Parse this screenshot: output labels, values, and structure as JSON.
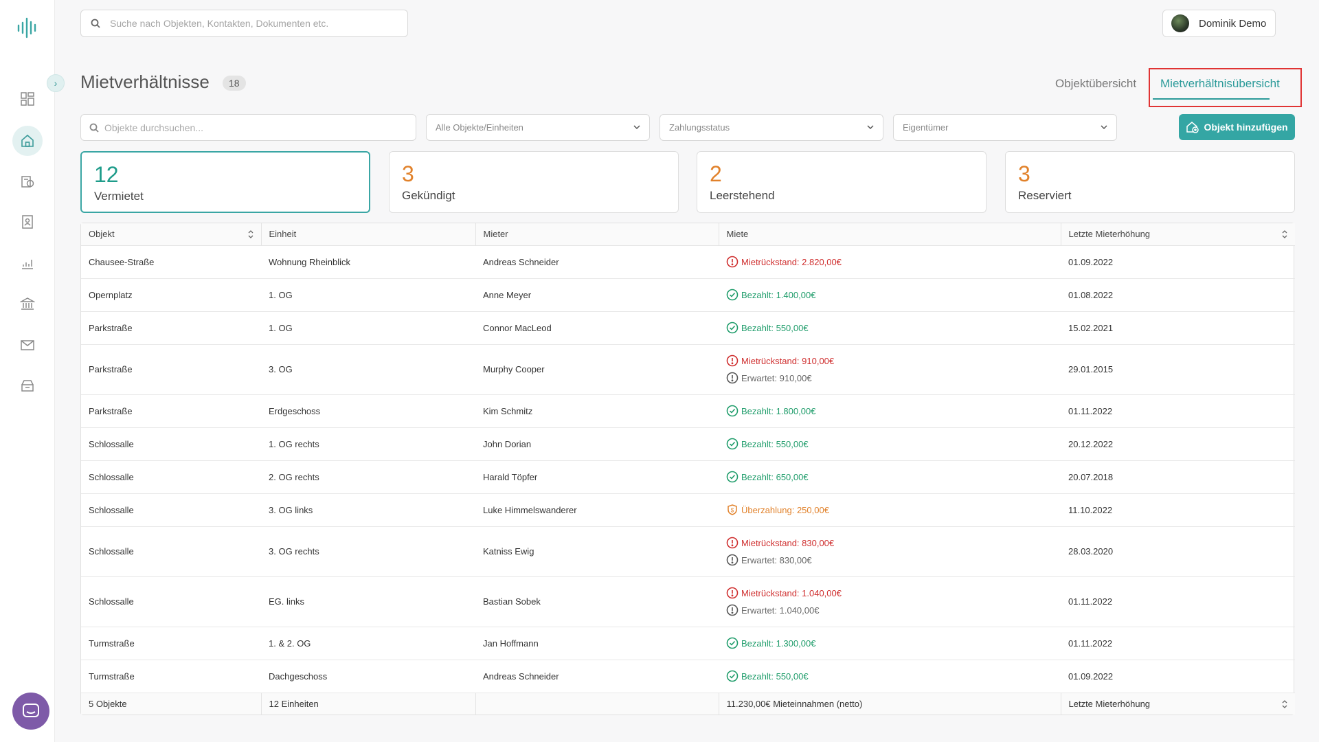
{
  "search": {
    "placeholder": "Suche nach Objekten, Kontakten, Dokumenten etc."
  },
  "user": {
    "name": "Dominik Demo"
  },
  "header": {
    "title": "Mietverhältnisse",
    "count": "18"
  },
  "tabs": [
    {
      "label": "Objektübersicht",
      "active": false
    },
    {
      "label": "Mietverhältnisübersicht",
      "active": true
    }
  ],
  "filters": {
    "search_placeholder": "Objekte durchsuchen...",
    "objects": "Alle Objekte/Einheiten",
    "payment": "Zahlungsstatus",
    "owner": "Eigentümer",
    "add_label": "Objekt hinzufügen"
  },
  "stats": [
    {
      "value": "12",
      "label": "Vermietet",
      "color": "#1e9c8a"
    },
    {
      "value": "3",
      "label": "Gekündigt",
      "color": "#e1812a"
    },
    {
      "value": "2",
      "label": "Leerstehend",
      "color": "#e1812a"
    },
    {
      "value": "3",
      "label": "Reserviert",
      "color": "#e1812a"
    }
  ],
  "table": {
    "headers": [
      "Objekt",
      "Einheit",
      "Mieter",
      "Miete",
      "Letzte Mieterhöhung"
    ],
    "rows": [
      {
        "objekt": "Chausee-Straße",
        "einheit": "Wohnung Rheinblick",
        "mieter": "Andreas Schneider",
        "status": [
          {
            "type": "err",
            "text": "Mietrückstand: 2.820,00€"
          }
        ],
        "date": "01.09.2022"
      },
      {
        "objekt": "Opernplatz",
        "einheit": "1. OG",
        "mieter": "Anne Meyer",
        "status": [
          {
            "type": "ok",
            "text": "Bezahlt: 1.400,00€"
          }
        ],
        "date": "01.08.2022"
      },
      {
        "objekt": "Parkstraße",
        "einheit": "1. OG",
        "mieter": "Connor MacLeod",
        "status": [
          {
            "type": "ok",
            "text": "Bezahlt: 550,00€"
          }
        ],
        "date": "15.02.2021"
      },
      {
        "objekt": "Parkstraße",
        "einheit": "3. OG",
        "mieter": "Murphy Cooper",
        "status": [
          {
            "type": "err",
            "text": "Mietrückstand: 910,00€"
          },
          {
            "type": "exp",
            "text": "Erwartet: 910,00€"
          }
        ],
        "date": "29.01.2015"
      },
      {
        "objekt": "Parkstraße",
        "einheit": "Erdgeschoss",
        "mieter": "Kim Schmitz",
        "status": [
          {
            "type": "ok",
            "text": "Bezahlt: 1.800,00€"
          }
        ],
        "date": "01.11.2022"
      },
      {
        "objekt": "Schlossalle",
        "einheit": "1. OG rechts",
        "mieter": "John Dorian",
        "status": [
          {
            "type": "ok",
            "text": "Bezahlt: 550,00€"
          }
        ],
        "date": "20.12.2022"
      },
      {
        "objekt": "Schlossalle",
        "einheit": "2. OG rechts",
        "mieter": "Harald Töpfer",
        "status": [
          {
            "type": "ok",
            "text": "Bezahlt: 650,00€"
          }
        ],
        "date": "20.07.2018"
      },
      {
        "objekt": "Schlossalle",
        "einheit": "3. OG links",
        "mieter": "Luke Himmelswanderer",
        "status": [
          {
            "type": "over",
            "text": "Überzahlung: 250,00€"
          }
        ],
        "date": "11.10.2022"
      },
      {
        "objekt": "Schlossalle",
        "einheit": "3. OG rechts",
        "mieter": "Katniss Ewig",
        "status": [
          {
            "type": "err",
            "text": "Mietrückstand: 830,00€"
          },
          {
            "type": "exp",
            "text": "Erwartet: 830,00€"
          }
        ],
        "date": "28.03.2020"
      },
      {
        "objekt": "Schlossalle",
        "einheit": "EG. links",
        "mieter": "Bastian Sobek",
        "status": [
          {
            "type": "err",
            "text": "Mietrückstand: 1.040,00€"
          },
          {
            "type": "exp",
            "text": "Erwartet: 1.040,00€"
          }
        ],
        "date": "01.11.2022"
      },
      {
        "objekt": "Turmstraße",
        "einheit": "1. & 2. OG",
        "mieter": "Jan Hoffmann",
        "status": [
          {
            "type": "ok",
            "text": "Bezahlt: 1.300,00€"
          }
        ],
        "date": "01.11.2022"
      },
      {
        "objekt": "Turmstraße",
        "einheit": "Dachgeschoss",
        "mieter": "Andreas Schneider",
        "status": [
          {
            "type": "ok",
            "text": "Bezahlt: 550,00€"
          }
        ],
        "date": "01.09.2022"
      }
    ],
    "footer": [
      "5 Objekte",
      "12 Einheiten",
      "",
      "11.230,00€ Mieteinnahmen (netto)",
      "Letzte Mieterhöhung"
    ]
  },
  "colors": {
    "accent": "#2b9a99",
    "ok": "#1e9c6a",
    "err": "#cf2e2e",
    "over": "#e1812a"
  }
}
